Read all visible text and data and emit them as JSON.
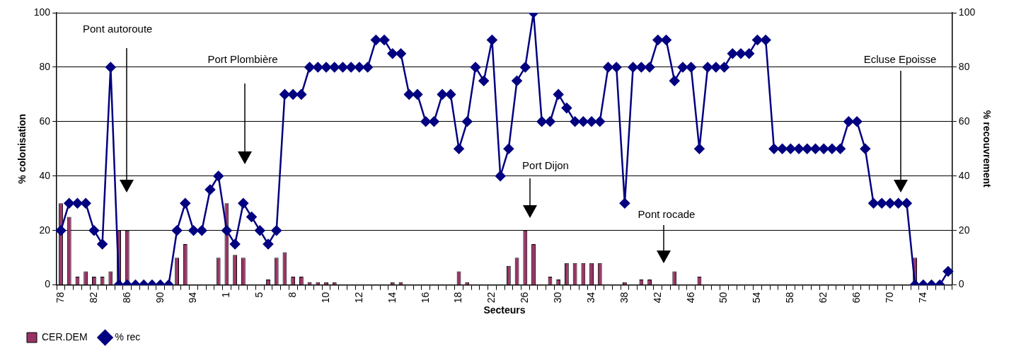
{
  "chart_data": {
    "type": "bar",
    "xlabel": "Secteurs",
    "ylabel": "% colonisation",
    "y2label": "% recouvrement",
    "categories": [
      "78",
      null,
      null,
      null,
      "82",
      null,
      null,
      null,
      "86",
      null,
      null,
      null,
      "90",
      null,
      null,
      null,
      "94",
      null,
      null,
      null,
      "1",
      null,
      null,
      null,
      "5",
      null,
      null,
      null,
      "8",
      null,
      null,
      null,
      "10",
      null,
      null,
      null,
      "12",
      null,
      null,
      null,
      "14",
      null,
      null,
      null,
      "16",
      null,
      null,
      null,
      "18",
      null,
      null,
      null,
      "22",
      null,
      null,
      null,
      "26",
      null,
      null,
      null,
      "30",
      null,
      null,
      null,
      "34",
      null,
      null,
      null,
      "38",
      null,
      null,
      null,
      "42",
      null,
      null,
      null,
      "46",
      null,
      null,
      null,
      "50",
      null,
      null,
      null,
      "54",
      null,
      null,
      null,
      "58",
      null,
      null,
      null,
      "62",
      null,
      null,
      null,
      "66",
      null,
      null,
      null,
      "70",
      null,
      null,
      null,
      "74",
      null,
      null,
      null
    ],
    "series": [
      {
        "name": "CER.DEM",
        "color": "#993366",
        "values": [
          30,
          25,
          3,
          5,
          3,
          3,
          5,
          20,
          20,
          0,
          0,
          0,
          0,
          0,
          10,
          15,
          0,
          0,
          0,
          10,
          30,
          11,
          10,
          0,
          0,
          2,
          10,
          12,
          3,
          3,
          1,
          1,
          1,
          1,
          0,
          0,
          0,
          0,
          0,
          0,
          1,
          1,
          0,
          0,
          0,
          0,
          0,
          0,
          5,
          1,
          0,
          0,
          0,
          0,
          7,
          10,
          20,
          15,
          0,
          3,
          2,
          8,
          8,
          8,
          8,
          8,
          0,
          0,
          1,
          0,
          2,
          2,
          0,
          0,
          5,
          0,
          0,
          3,
          0,
          0,
          0,
          0,
          0,
          0,
          0,
          0,
          0,
          0,
          0,
          0,
          0,
          0,
          0,
          0,
          0,
          0,
          0,
          0,
          0,
          0,
          0,
          0,
          0,
          10,
          0,
          0,
          0,
          0
        ]
      },
      {
        "name": "% rec",
        "type": "line",
        "color": "#000080",
        "marker": "diamond",
        "line_style": "solid",
        "values": [
          20,
          30,
          30,
          30,
          20,
          15,
          80,
          0,
          0,
          0,
          0,
          0,
          0,
          0,
          20,
          30,
          20,
          20,
          35,
          40,
          20,
          15,
          30,
          25,
          20,
          15,
          20,
          70,
          70,
          70,
          80,
          80,
          80,
          80,
          80,
          80,
          80,
          80,
          90,
          90,
          85,
          85,
          70,
          70,
          60,
          60,
          70,
          70,
          50,
          60,
          80,
          75,
          90,
          40,
          50,
          75,
          80,
          100,
          60,
          60,
          70,
          65,
          60,
          60,
          60,
          60,
          80,
          80,
          30,
          80,
          80,
          80,
          90,
          90,
          75,
          80,
          80,
          50,
          80,
          80,
          80,
          85,
          85,
          85,
          90,
          90,
          50,
          50,
          50,
          50,
          50,
          50,
          50,
          50,
          50,
          60,
          60,
          50,
          30,
          30,
          30,
          30,
          30,
          0,
          0,
          0,
          0,
          5
        ]
      }
    ],
    "ylim": [
      0,
      100
    ],
    "yticks": [
      0,
      20,
      40,
      60,
      80,
      100
    ],
    "y2lim": [
      0,
      100
    ],
    "y2ticks": [
      0,
      20,
      40,
      60,
      80,
      100
    ],
    "grid": "y",
    "legend": "bottom left",
    "annotations": [
      "Pont autoroute",
      "Port Plombière",
      "Port Dijon",
      "Pont rocade",
      "Ecluse Epoisse"
    ]
  }
}
